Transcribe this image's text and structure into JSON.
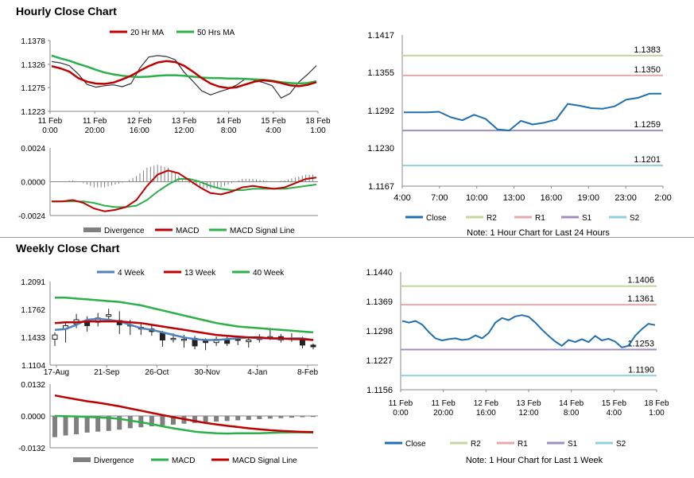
{
  "sections": {
    "hourly_title": "Hourly Close Chart",
    "weekly_title": "Weekly Close Chart"
  },
  "colors": {
    "ma_short": "#c00000",
    "ma_long": "#2bb04a",
    "macd_signal": "#2bb04a",
    "macd": "#c00000",
    "divergence": "#7f7f7f",
    "close": "#1f6fb4",
    "r2": "#c4d79b",
    "r1": "#e6a8a8",
    "s1": "#a08cc0",
    "s2": "#8fd0e0",
    "week4": "#4f81bd"
  },
  "chart_data": [
    {
      "id": "hourly_price",
      "type": "line",
      "legend": [
        "20 Hr MA",
        "50 Hrs MA"
      ],
      "x_ticks": [
        "11 Feb\n0:00",
        "11 Feb\n20:00",
        "12 Feb\n16:00",
        "13 Feb\n12:00",
        "14 Feb\n8:00",
        "15 Feb\n4:00",
        "18 Feb\n1:00"
      ],
      "y_ticks": [
        "1.1378",
        "1.1326",
        "1.1275",
        "1.1223"
      ],
      "ylim": [
        1.1223,
        1.1378
      ],
      "series": [
        {
          "name": "20 Hr MA",
          "values": [
            1.1322,
            1.1317,
            1.131,
            1.1296,
            1.1288,
            1.1284,
            1.1283,
            1.1286,
            1.1293,
            1.1301,
            1.1312,
            1.1322,
            1.133,
            1.1333,
            1.1331,
            1.1323,
            1.131,
            1.1296,
            1.1284,
            1.1277,
            1.1274,
            1.1276,
            1.1282,
            1.1288,
            1.1291,
            1.1289,
            1.1285,
            1.128,
            1.1278,
            1.1281,
            1.1287
          ]
        },
        {
          "name": "50 Hrs MA",
          "values": [
            1.1345,
            1.1339,
            1.1334,
            1.1327,
            1.1321,
            1.1314,
            1.1308,
            1.1304,
            1.1301,
            1.1299,
            1.1298,
            1.1299,
            1.1301,
            1.1302,
            1.1302,
            1.1301,
            1.1299,
            1.1297,
            1.1296,
            1.1296,
            1.1295,
            1.1295,
            1.1294,
            1.1293,
            1.1292,
            1.129,
            1.1287,
            1.1285,
            1.1284,
            1.1285,
            1.1289
          ]
        },
        {
          "name": "Close",
          "values": [
            1.1332,
            1.1329,
            1.1323,
            1.1305,
            1.1282,
            1.1276,
            1.1279,
            1.1281,
            1.1277,
            1.1284,
            1.1318,
            1.1342,
            1.1345,
            1.1343,
            1.1336,
            1.1309,
            1.1289,
            1.1268,
            1.1259,
            1.1266,
            1.1272,
            1.1281,
            1.1295,
            1.1291,
            1.1286,
            1.1279,
            1.1252,
            1.1262,
            1.1287,
            1.1304,
            1.1323
          ]
        }
      ]
    },
    {
      "id": "hourly_macd",
      "type": "line",
      "legend": [
        "Divergence",
        "MACD",
        "MACD Signal Line"
      ],
      "y_ticks": [
        "0.0024",
        "0.0000",
        "-0.0024"
      ],
      "ylim": [
        -0.0024,
        0.0024
      ],
      "series": [
        {
          "name": "MACD",
          "values": [
            -0.0014,
            -0.0014,
            -0.0013,
            -0.0015,
            -0.0019,
            -0.0021,
            -0.002,
            -0.0018,
            -0.0013,
            -0.0003,
            0.0005,
            0.0008,
            0.0006,
            0.0001,
            -0.0004,
            -0.0008,
            -0.0009,
            -0.0007,
            -0.0004,
            -0.0003,
            -0.0004,
            -0.0005,
            -0.0004,
            -0.0001,
            0.0002,
            0.0003
          ]
        },
        {
          "name": "MACD Signal Line",
          "values": [
            -0.0014,
            -0.0014,
            -0.0014,
            -0.0014,
            -0.0015,
            -0.0017,
            -0.0018,
            -0.0018,
            -0.0017,
            -0.0013,
            -0.0007,
            -0.0002,
            0.0002,
            0.0002,
            0.0,
            -0.0003,
            -0.0005,
            -0.0006,
            -0.0006,
            -0.0005,
            -0.0005,
            -0.0005,
            -0.0005,
            -0.0004,
            -0.0003,
            -0.0002
          ]
        }
      ]
    },
    {
      "id": "hourly_levels",
      "type": "line",
      "legend": [
        "Close",
        "R2",
        "R1",
        "S1",
        "S2"
      ],
      "note": "Note: 1 Hour Chart for Last 24 Hours",
      "x_ticks": [
        "4:00",
        "7:00",
        "10:00",
        "13:00",
        "16:00",
        "19:00",
        "23:00",
        "2:00"
      ],
      "y_ticks": [
        "1.1417",
        "1.1355",
        "1.1292",
        "1.1230",
        "1.1167"
      ],
      "ylim": [
        1.1167,
        1.1417
      ],
      "levels": [
        {
          "name": "R2",
          "value": 1.1383,
          "label": "1.1383"
        },
        {
          "name": "R1",
          "value": 1.135,
          "label": "1.1350"
        },
        {
          "name": "S1",
          "value": 1.1259,
          "label": "1.1259"
        },
        {
          "name": "S2",
          "value": 1.1201,
          "label": "1.1201"
        }
      ],
      "series": [
        {
          "name": "Close",
          "values": [
            1.1289,
            1.1289,
            1.1289,
            1.129,
            1.1281,
            1.1276,
            1.1285,
            1.1278,
            1.1261,
            1.1259,
            1.1275,
            1.1269,
            1.1272,
            1.1277,
            1.1303,
            1.13,
            1.1296,
            1.1295,
            1.1299,
            1.131,
            1.1313,
            1.132,
            1.132
          ]
        }
      ]
    },
    {
      "id": "weekly_price",
      "type": "line",
      "legend": [
        "4 Week",
        "13 Week",
        "40 Week"
      ],
      "x_ticks": [
        "17-Aug",
        "21-Sep",
        "26-Oct",
        "30-Nov",
        "4-Jan",
        "8-Feb"
      ],
      "y_ticks": [
        "1.2091",
        "1.1762",
        "1.1433",
        "1.1104"
      ],
      "ylim": [
        1.1104,
        1.2091
      ],
      "series": [
        {
          "name": "4 Week",
          "values": [
            1.152,
            1.153,
            1.158,
            1.164,
            1.165,
            1.164,
            1.162,
            1.158,
            1.154,
            1.152,
            1.149,
            1.146,
            1.143,
            1.141,
            1.14,
            1.14,
            1.141,
            1.142,
            1.143,
            1.142,
            1.142,
            1.141,
            1.142,
            1.142,
            1.14
          ]
        },
        {
          "name": "13 Week",
          "values": [
            1.16,
            1.161,
            1.161,
            1.162,
            1.162,
            1.162,
            1.162,
            1.161,
            1.16,
            1.158,
            1.156,
            1.154,
            1.152,
            1.15,
            1.148,
            1.146,
            1.145,
            1.144,
            1.143,
            1.143,
            1.142,
            1.142,
            1.141,
            1.141,
            1.14
          ]
        },
        {
          "name": "40 Week",
          "values": [
            1.19,
            1.19,
            1.189,
            1.188,
            1.187,
            1.186,
            1.185,
            1.183,
            1.181,
            1.178,
            1.175,
            1.172,
            1.169,
            1.166,
            1.163,
            1.16,
            1.158,
            1.156,
            1.155,
            1.154,
            1.153,
            1.152,
            1.151,
            1.15,
            1.149
          ]
        }
      ],
      "candles": [
        {
          "o": 1.141,
          "c": 1.146,
          "h": 1.149,
          "l": 1.133
        },
        {
          "o": 1.153,
          "c": 1.157,
          "h": 1.162,
          "l": 1.137
        },
        {
          "o": 1.159,
          "c": 1.164,
          "h": 1.171,
          "l": 1.154
        },
        {
          "o": 1.163,
          "c": 1.157,
          "h": 1.168,
          "l": 1.15
        },
        {
          "o": 1.161,
          "c": 1.166,
          "h": 1.172,
          "l": 1.156
        },
        {
          "o": 1.168,
          "c": 1.17,
          "h": 1.177,
          "l": 1.161
        },
        {
          "o": 1.163,
          "c": 1.158,
          "h": 1.174,
          "l": 1.147
        },
        {
          "o": 1.157,
          "c": 1.158,
          "h": 1.164,
          "l": 1.146
        },
        {
          "o": 1.155,
          "c": 1.153,
          "h": 1.16,
          "l": 1.146
        },
        {
          "o": 1.153,
          "c": 1.15,
          "h": 1.157,
          "l": 1.145
        },
        {
          "o": 1.148,
          "c": 1.14,
          "h": 1.151,
          "l": 1.132
        },
        {
          "o": 1.141,
          "c": 1.142,
          "h": 1.148,
          "l": 1.137
        },
        {
          "o": 1.141,
          "c": 1.141,
          "h": 1.146,
          "l": 1.131
        },
        {
          "o": 1.142,
          "c": 1.133,
          "h": 1.145,
          "l": 1.129
        },
        {
          "o": 1.139,
          "c": 1.137,
          "h": 1.142,
          "l": 1.128
        },
        {
          "o": 1.137,
          "c": 1.141,
          "h": 1.144,
          "l": 1.133
        },
        {
          "o": 1.14,
          "c": 1.136,
          "h": 1.144,
          "l": 1.133
        },
        {
          "o": 1.141,
          "c": 1.14,
          "h": 1.145,
          "l": 1.134
        },
        {
          "o": 1.138,
          "c": 1.14,
          "h": 1.143,
          "l": 1.131
        },
        {
          "o": 1.141,
          "c": 1.142,
          "h": 1.147,
          "l": 1.137
        },
        {
          "o": 1.143,
          "c": 1.144,
          "h": 1.152,
          "l": 1.14
        },
        {
          "o": 1.144,
          "c": 1.14,
          "h": 1.147,
          "l": 1.137
        },
        {
          "o": 1.141,
          "c": 1.142,
          "h": 1.148,
          "l": 1.138
        },
        {
          "o": 1.141,
          "c": 1.134,
          "h": 1.144,
          "l": 1.13
        },
        {
          "o": 1.134,
          "c": 1.132,
          "h": 1.136,
          "l": 1.129
        }
      ]
    },
    {
      "id": "weekly_macd",
      "type": "line",
      "legend": [
        "Divergence",
        "MACD",
        "MACD Signal Line"
      ],
      "y_ticks": [
        "0.0132",
        "0.0000",
        "-0.0132"
      ],
      "ylim": [
        -0.0132,
        0.0132
      ],
      "series": [
        {
          "name": "MACD Signal Line",
          "values": [
            0.0085,
            0.0077,
            0.0069,
            0.0061,
            0.0055,
            0.0048,
            0.004,
            0.0031,
            0.0022,
            0.0013,
            0.0004,
            -0.0005,
            -0.0013,
            -0.0021,
            -0.0029,
            -0.0035,
            -0.0041,
            -0.0046,
            -0.0051,
            -0.0055,
            -0.0059,
            -0.0062,
            -0.0064,
            -0.0066,
            -0.0067
          ]
        },
        {
          "name": "MACD",
          "values": [
            0.0,
            -0.0001,
            -0.0002,
            -0.0004,
            -0.0006,
            -0.0008,
            -0.0012,
            -0.0019,
            -0.0026,
            -0.0034,
            -0.0043,
            -0.0051,
            -0.0058,
            -0.0065,
            -0.0069,
            -0.0072,
            -0.0073,
            -0.0072,
            -0.0072,
            -0.0072,
            -0.007,
            -0.0069,
            -0.0068,
            -0.0068,
            -0.0069
          ]
        },
        {
          "name": "Divergence",
          "values": [
            -0.0088,
            -0.0081,
            -0.0076,
            -0.0069,
            -0.0065,
            -0.0062,
            -0.0057,
            -0.0051,
            -0.0047,
            -0.0043,
            -0.0039,
            -0.0036,
            -0.0032,
            -0.0029,
            -0.0026,
            -0.0023,
            -0.0021,
            -0.0018,
            -0.0016,
            -0.0013,
            -0.0011,
            -0.0009,
            -0.0007,
            -0.0005,
            -0.0004
          ]
        }
      ]
    },
    {
      "id": "weekly_levels",
      "type": "line",
      "legend": [
        "Close",
        "R2",
        "R1",
        "S1",
        "S2"
      ],
      "note": "Note: 1 Hour Chart for Last 1 Week",
      "x_ticks": [
        "11 Feb\n0:00",
        "11 Feb\n20:00",
        "12 Feb\n16:00",
        "13 Feb\n12:00",
        "14 Feb\n8:00",
        "15 Feb\n4:00",
        "18 Feb\n1:00"
      ],
      "y_ticks": [
        "1.1440",
        "1.1369",
        "1.1298",
        "1.1227",
        "1.1156"
      ],
      "ylim": [
        1.1156,
        1.144
      ],
      "levels": [
        {
          "name": "R2",
          "value": 1.1406,
          "label": "1.1406"
        },
        {
          "name": "R1",
          "value": 1.1361,
          "label": "1.1361"
        },
        {
          "name": "S1",
          "value": 1.1253,
          "label": "1.1253"
        },
        {
          "name": "S2",
          "value": 1.119,
          "label": "1.1190"
        }
      ],
      "series": [
        {
          "name": "Close",
          "values": [
            1.1322,
            1.1318,
            1.1322,
            1.1313,
            1.1295,
            1.128,
            1.1275,
            1.1278,
            1.128,
            1.1276,
            1.1278,
            1.1287,
            1.128,
            1.1293,
            1.1318,
            1.1329,
            1.1324,
            1.1333,
            1.1336,
            1.1332,
            1.1318,
            1.1301,
            1.1286,
            1.1272,
            1.1262,
            1.1276,
            1.1271,
            1.1278,
            1.1271,
            1.1286,
            1.1275,
            1.1279,
            1.1272,
            1.1258,
            1.1262,
            1.1286,
            1.1302,
            1.1315,
            1.1312
          ]
        }
      ]
    }
  ]
}
